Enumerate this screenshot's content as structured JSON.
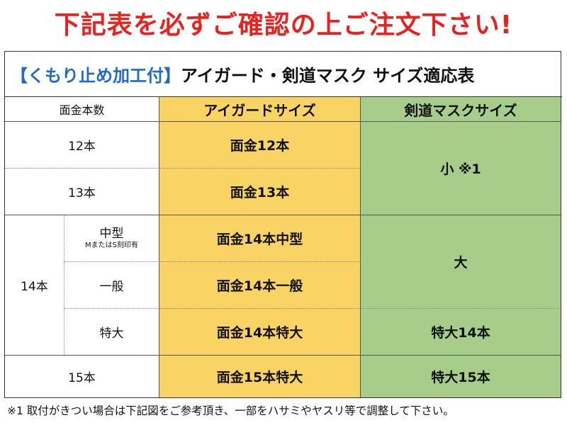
{
  "banner": "下記表を必ずご確認の上ご注文下さい!",
  "title": {
    "bracket_text": "【くもり止め加工付】",
    "main_text": "アイガード・剣道マスク サイズ適応表"
  },
  "headers": {
    "col1": "面金本数",
    "col2": "アイガードサイズ",
    "col3": "剣道マスクサイズ"
  },
  "rows": {
    "r12": {
      "label": "12本",
      "eyeguard": "面金12本"
    },
    "r13": {
      "label": "13本",
      "eyeguard": "面金13本"
    },
    "mask_small": "小 ※1",
    "r14": {
      "label": "14本",
      "sub_medium": "中型",
      "sub_medium_note": "MまたはS刻印有",
      "eyeguard_medium": "面金14本中型",
      "sub_general": "一般",
      "eyeguard_general": "面金14本一般",
      "sub_xl": "特大",
      "eyeguard_xl": "面金14本特大",
      "mask_large": "大",
      "mask_xl": "特大14本"
    },
    "r15": {
      "label": "15本",
      "eyeguard": "面金15本特大",
      "mask": "特大15本"
    }
  },
  "footnote": "※1 取付がきつい場合は下記図をご参考頂き、一部をハサミやヤスリ等で調整して下さい。",
  "colors": {
    "banner_red": "#e8231f",
    "title_blue": "#1e6cc4",
    "yellow": "#fad365",
    "green": "#a6cd8a"
  }
}
